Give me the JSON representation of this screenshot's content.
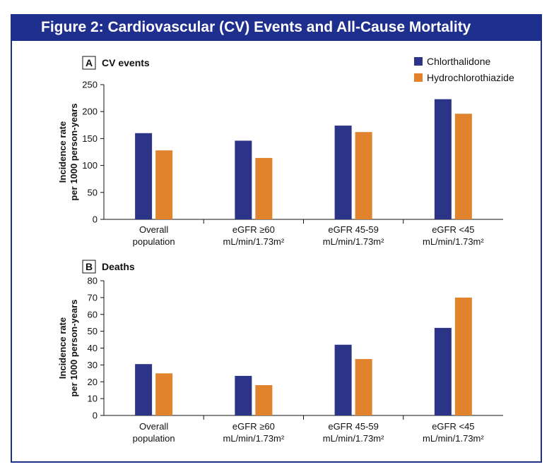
{
  "figure_title": "Figure 2: Cardiovascular (CV) Events and All-Cause Mortality",
  "colors": {
    "frame": "#1f2f8e",
    "header_bg": "#1f2f8e",
    "chlorthalidone": "#2b3486",
    "hydrochlorothiazide": "#e1822c"
  },
  "legend": [
    {
      "name": "Chlorthalidone",
      "color": "#2b3486"
    },
    {
      "name": "Hydrochlorothiazide",
      "color": "#e1822c"
    }
  ],
  "chart_data": [
    {
      "type": "bar",
      "panel": "A",
      "title": "CV events",
      "ylabel": [
        "Incidence rate",
        "per 1000 person-years"
      ],
      "ylim": [
        0,
        250
      ],
      "yticks": [
        0,
        50,
        100,
        150,
        200,
        250
      ],
      "categories": [
        [
          "Overall",
          "population"
        ],
        [
          "eGFR ≥60",
          "mL/min/1.73m²"
        ],
        [
          "eGFR 45-59",
          "mL/min/1.73m²"
        ],
        [
          "eGFR <45",
          "mL/min/1.73m²"
        ]
      ],
      "series": [
        {
          "name": "Chlorthalidone",
          "values": [
            160,
            146,
            174,
            223
          ]
        },
        {
          "name": "Hydrochlorothiazide",
          "values": [
            128,
            114,
            162,
            196
          ]
        }
      ]
    },
    {
      "type": "bar",
      "panel": "B",
      "title": "Deaths",
      "ylabel": [
        "Incidence rate",
        "per 1000 person-years"
      ],
      "ylim": [
        0,
        80
      ],
      "yticks": [
        0,
        10,
        20,
        30,
        40,
        50,
        60,
        70,
        80
      ],
      "categories": [
        [
          "Overall",
          "population"
        ],
        [
          "eGFR ≥60",
          "mL/min/1.73m²"
        ],
        [
          "eGFR 45-59",
          "mL/min/1.73m²"
        ],
        [
          "eGFR <45",
          "mL/min/1.73m²"
        ]
      ],
      "series": [
        {
          "name": "Chlorthalidone",
          "values": [
            30.5,
            23.5,
            42,
            52
          ]
        },
        {
          "name": "Hydrochlorothiazide",
          "values": [
            25,
            18,
            33.5,
            70
          ]
        }
      ]
    }
  ]
}
